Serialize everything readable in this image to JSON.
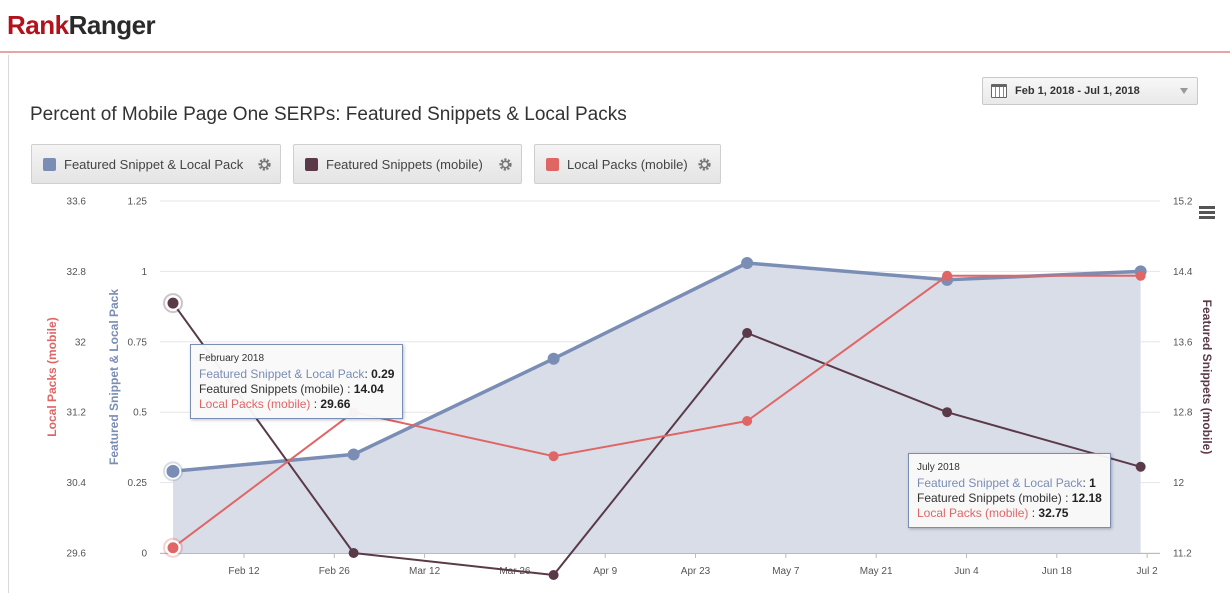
{
  "header": {
    "logo_part1": "Rank",
    "logo_part2": "Ranger"
  },
  "date_range": {
    "label": "Feb 1, 2018 - Jul 1, 2018"
  },
  "title": "Percent of Mobile Page One SERPs: Featured Snippets & Local Packs",
  "legend": [
    {
      "label": "Featured Snippet & Local Pack",
      "color": "#7a8db4"
    },
    {
      "label": "Featured Snippets (mobile)",
      "color": "#5a3a48"
    },
    {
      "label": "Local Packs (mobile)",
      "color": "#e06666"
    }
  ],
  "tooltips": [
    {
      "header": "February 2018",
      "rows": [
        {
          "label": "Featured Snippet & Local Pack",
          "value": "0.29"
        },
        {
          "label": "Featured Snippets (mobile)",
          "value": "14.04"
        },
        {
          "label": "Local Packs (mobile)",
          "value": "29.66"
        }
      ]
    },
    {
      "header": "July 2018",
      "rows": [
        {
          "label": "Featured Snippet & Local Pack",
          "value": "1"
        },
        {
          "label": "Featured Snippets (mobile)",
          "value": "12.18"
        },
        {
          "label": "Local Packs (mobile)",
          "value": "32.75"
        }
      ]
    }
  ],
  "chart_data": {
    "type": "line",
    "x_ticks": [
      "Feb 12",
      "Feb 26",
      "Mar 12",
      "Mar 26",
      "Apr 9",
      "Apr 23",
      "May 7",
      "May 21",
      "Jun 4",
      "Jun 18",
      "Jul 2"
    ],
    "x": [
      "2018-02-01",
      "2018-03-01",
      "2018-04-01",
      "2018-05-01",
      "2018-06-01",
      "2018-07-01"
    ],
    "x_range": [
      "2018-02-01",
      "2018-07-01"
    ],
    "axes": {
      "left_outer": {
        "label": "Local Packs (mobile)",
        "min": 29.6,
        "max": 33.6,
        "ticks": [
          "29.6",
          "30.4",
          "31.2",
          "32",
          "32.8",
          "33.6"
        ],
        "color": "#e06666"
      },
      "left_inner": {
        "label": "Featured Snippet & Local Pack",
        "min": 0,
        "max": 1.25,
        "ticks": [
          "0",
          "0.25",
          "0.5",
          "0.75",
          "1",
          "1.25"
        ],
        "color": "#7a8db4"
      },
      "right": {
        "label": "Featured Snippets (mobile)",
        "min": 11.2,
        "max": 15.2,
        "ticks": [
          "11.2",
          "12",
          "12.8",
          "13.6",
          "14.4",
          "15.2"
        ],
        "color": "#5a3a48"
      }
    },
    "series": [
      {
        "name": "Featured Snippet & Local Pack",
        "axis": "left_inner",
        "type": "area",
        "color": "#7a8db4",
        "values": [
          0.29,
          0.35,
          0.69,
          1.03,
          0.97,
          1.0
        ]
      },
      {
        "name": "Featured Snippets (mobile)",
        "axis": "right",
        "type": "line",
        "color": "#5a3a48",
        "values": [
          14.04,
          11.2,
          10.95,
          13.7,
          12.8,
          12.18
        ]
      },
      {
        "name": "Local Packs (mobile)",
        "axis": "left_outer",
        "type": "line",
        "color": "#e06666",
        "values": [
          29.66,
          31.2,
          30.7,
          31.1,
          32.75,
          32.75
        ]
      }
    ],
    "grid": true
  }
}
